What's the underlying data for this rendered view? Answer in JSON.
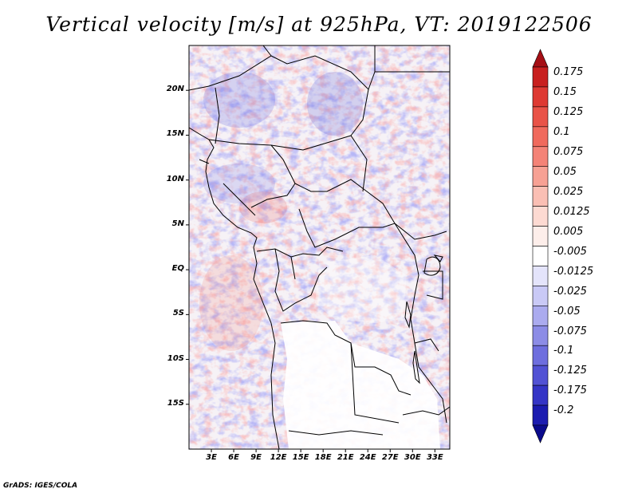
{
  "title": "Vertical velocity [m/s] at 925hPa, VT: 2019122506",
  "credit": "GrADS: IGES/COLA",
  "map": {
    "lat_labels": [
      "20N",
      "15N",
      "10N",
      "5N",
      "EQ",
      "5S",
      "10S",
      "15S"
    ],
    "lat_values": [
      20,
      15,
      10,
      5,
      0,
      -5,
      -10,
      -15
    ],
    "lon_labels": [
      "3E",
      "6E",
      "9E",
      "12E",
      "15E",
      "18E",
      "21E",
      "24E",
      "27E",
      "30E",
      "33E"
    ],
    "lon_values": [
      3,
      6,
      9,
      12,
      15,
      18,
      21,
      24,
      27,
      30,
      33
    ],
    "lon_range": [
      0,
      35
    ],
    "lat_range": [
      -20,
      25
    ]
  },
  "colorbar": {
    "labels": [
      "0.175",
      "0.15",
      "0.125",
      "0.1",
      "0.075",
      "0.05",
      "0.025",
      "0.0125",
      "0.005",
      "-0.005",
      "-0.0125",
      "-0.025",
      "-0.05",
      "-0.075",
      "-0.1",
      "-0.125",
      "-0.175",
      "-0.2"
    ],
    "colors": [
      "#a50f15",
      "#c8201f",
      "#de3a33",
      "#e95348",
      "#f06a5d",
      "#f48377",
      "#f7a194",
      "#fabfb4",
      "#fddad2",
      "#fdeeea",
      "#ffffff",
      "#e4e4fb",
      "#c9c9f6",
      "#ababef",
      "#8c8ce6",
      "#6e6ede",
      "#5252d4",
      "#3535c6",
      "#1c1cb0",
      "#0a0a8c"
    ]
  }
}
